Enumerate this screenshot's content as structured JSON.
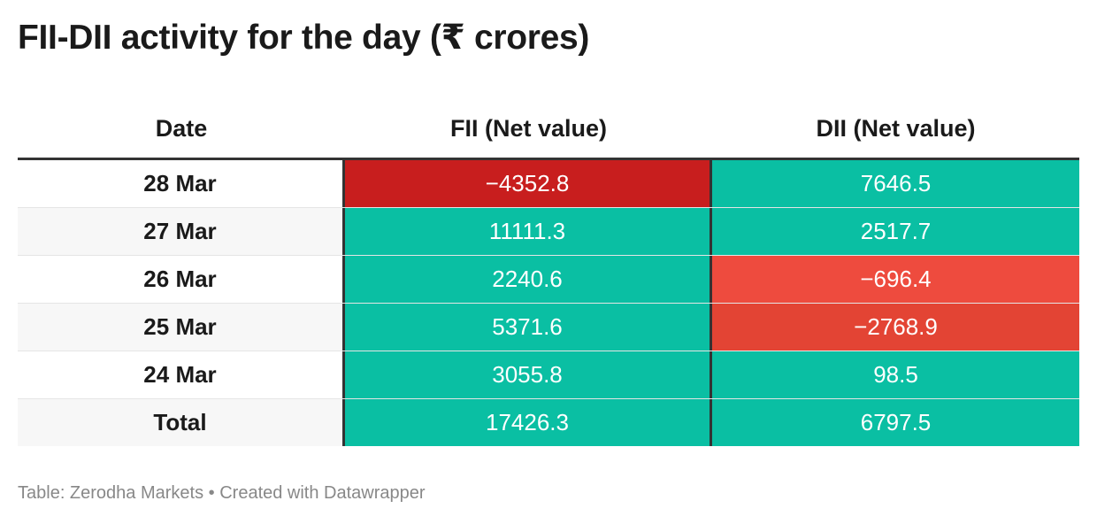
{
  "chart_data": {
    "type": "table",
    "title": "FII-DII activity for the day (₹ crores)",
    "columns": [
      "Date",
      "FII (Net value)",
      "DII (Net value)"
    ],
    "rows": [
      {
        "date": "28 Mar",
        "fii": "−4352.8",
        "dii": "7646.5",
        "fii_value": -4352.8,
        "dii_value": 7646.5
      },
      {
        "date": "27 Mar",
        "fii": "11111.3",
        "dii": "2517.7",
        "fii_value": 11111.3,
        "dii_value": 2517.7
      },
      {
        "date": "26 Mar",
        "fii": "2240.6",
        "dii": "−696.4",
        "fii_value": 2240.6,
        "dii_value": -696.4
      },
      {
        "date": "25 Mar",
        "fii": "5371.6",
        "dii": "−2768.9",
        "fii_value": 5371.6,
        "dii_value": -2768.9
      },
      {
        "date": "24 Mar",
        "fii": "3055.8",
        "dii": "98.5",
        "fii_value": 3055.8,
        "dii_value": 98.5
      },
      {
        "date": "Total",
        "fii": "17426.3",
        "dii": "6797.5",
        "fii_value": 17426.3,
        "dii_value": 6797.5
      }
    ],
    "colors": {
      "positive": "#0abfa3",
      "negative_light": "#ee4b3e",
      "negative_medium": "#e34434",
      "negative_dark": "#c81e1e"
    }
  },
  "source_line": "Table: Zerodha Markets • Created with Datawrapper"
}
